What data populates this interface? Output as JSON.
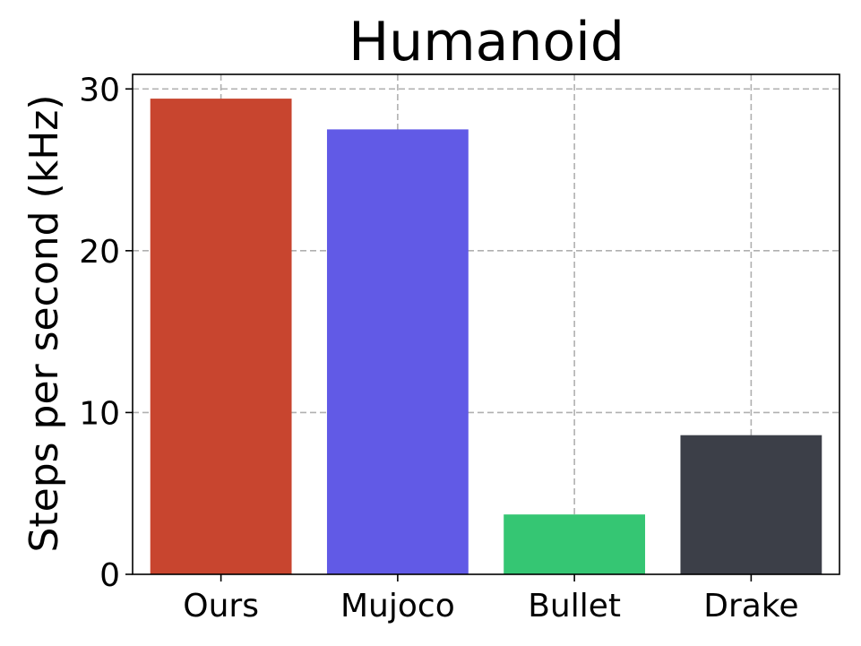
{
  "chart_data": {
    "type": "bar",
    "title": "Humanoid",
    "xlabel": "",
    "ylabel": "Steps per second (kHz)",
    "categories": [
      "Ours",
      "Mujoco",
      "Bullet",
      "Drake"
    ],
    "values": [
      29.4,
      27.5,
      3.7,
      8.6
    ],
    "colors": [
      "#c8452f",
      "#615ae6",
      "#35c673",
      "#3c3f48"
    ],
    "ylim": [
      0,
      30.9
    ],
    "yticks": [
      0,
      10,
      20,
      30
    ],
    "grid": true,
    "legend": "none"
  }
}
